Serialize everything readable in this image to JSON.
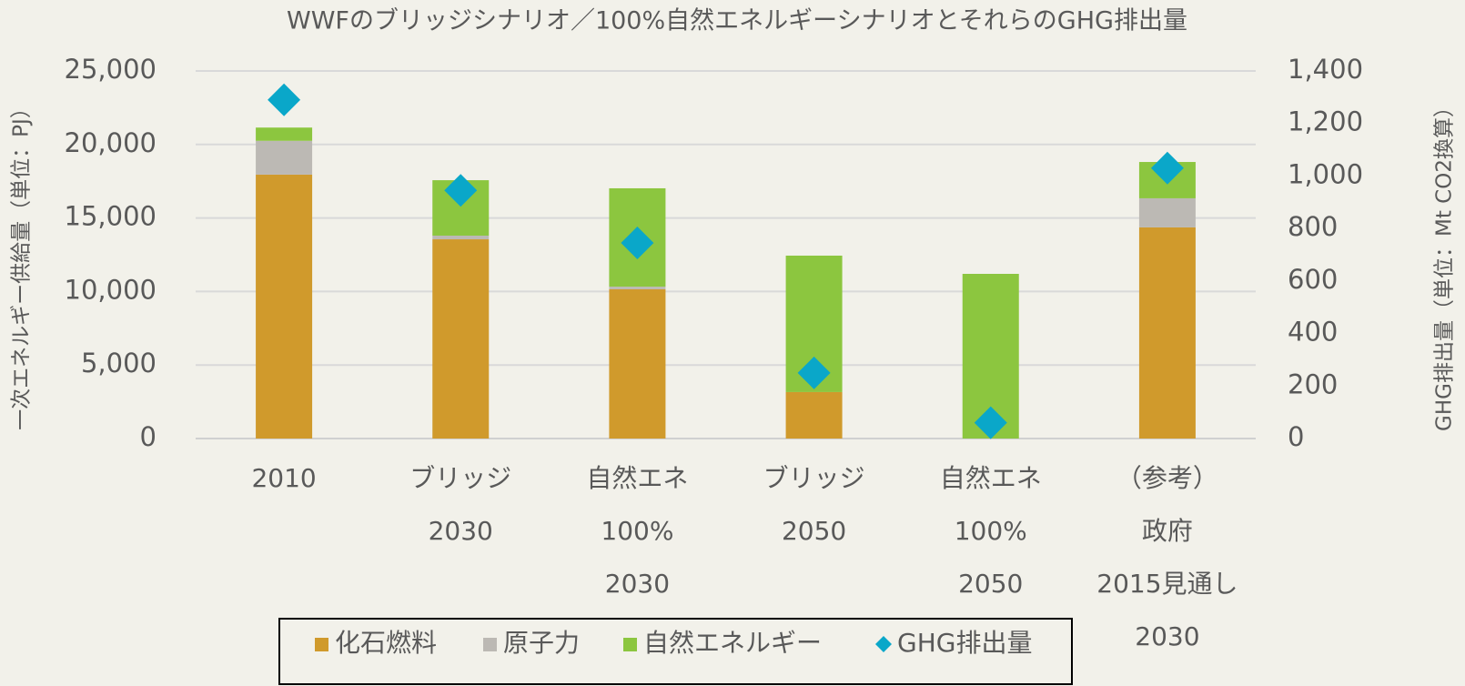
{
  "chart_data": {
    "type": "bar",
    "stacked": true,
    "title": "WWFのブリッジシナリオ／100%自然エネルギーシナリオとそれらのGHG排出量",
    "y_label": "一次エネルギー供給量（単位：PJ）",
    "y2_label": "GHG排出量（単位：Mt CO2換算）",
    "categories": [
      [
        "2010"
      ],
      [
        "ブリッジ",
        "2030"
      ],
      [
        "自然エネ",
        "100%",
        "2030"
      ],
      [
        "ブリッジ",
        "2050"
      ],
      [
        "自然エネ",
        "100%",
        "2050"
      ],
      [
        "（参考）",
        "政府",
        "2015見通し",
        "2030"
      ]
    ],
    "series": [
      {
        "name": "化石燃料",
        "color": "#d09a2c",
        "values": [
          17950,
          13550,
          10150,
          3160,
          0,
          14360
        ]
      },
      {
        "name": "原子力",
        "color": "#bcb9b4",
        "values": [
          2300,
          250,
          180,
          0,
          0,
          1980
        ]
      },
      {
        "name": "自然エネルギー",
        "color": "#8cc63f",
        "values": [
          900,
          3770,
          6690,
          9280,
          11200,
          2470
        ]
      },
      {
        "name": "GHG排出量",
        "color": "#0aa7c9",
        "axis": "y2",
        "marker": "diamond",
        "values": [
          1290,
          945,
          745,
          250,
          60,
          1030
        ]
      }
    ],
    "ylim": [
      0,
      25000
    ],
    "yticks": [
      0,
      {
        "value": 5000,
        "label": "5,000"
      },
      {
        "value": 10000,
        "label": "10,000"
      },
      {
        "value": 15000,
        "label": "15,000"
      },
      {
        "value": 20000,
        "label": "20,000"
      },
      {
        "value": 25000,
        "label": "25,000"
      }
    ],
    "y2lim": [
      0,
      1400
    ],
    "y2ticks": [
      0,
      200,
      400,
      600,
      800,
      {
        "value": 1000,
        "label": "1,000"
      },
      {
        "value": 1200,
        "label": "1,200"
      },
      {
        "value": 1400,
        "label": "1,400"
      }
    ],
    "grid": true,
    "legend": "bottom"
  }
}
